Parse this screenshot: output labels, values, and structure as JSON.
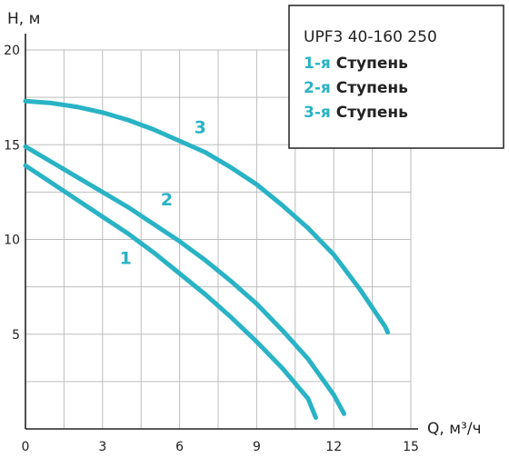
{
  "chart_data": {
    "type": "line",
    "xlabel": "Q, м³/ч",
    "ylabel": "H, м",
    "xlim": [
      0,
      15
    ],
    "ylim": [
      0,
      20
    ],
    "x_ticks": [
      0,
      3,
      6,
      9,
      12,
      15
    ],
    "y_ticks": [
      5,
      10,
      15,
      20
    ],
    "x_grid_step": 1.5,
    "y_grid_step": 2.5,
    "grid": true,
    "line_color": "#29b3c5",
    "legend": {
      "placement": "top-right",
      "title": "UPF3 40-160 250",
      "entries": [
        {
          "prefix": "1-я",
          "text": "Ступень"
        },
        {
          "prefix": "2-я",
          "text": "Ступень"
        },
        {
          "prefix": "3-я",
          "text": "Ступень"
        }
      ]
    },
    "series": [
      {
        "label": "1",
        "label_at": [
          3.9,
          8.7
        ],
        "x": [
          0,
          1,
          2,
          3,
          4,
          5,
          6,
          7,
          8,
          9,
          10,
          11,
          11.3
        ],
        "y": [
          13.9,
          13.0,
          12.1,
          11.2,
          10.3,
          9.3,
          8.2,
          7.1,
          5.9,
          4.6,
          3.2,
          1.6,
          0.6
        ]
      },
      {
        "label": "2",
        "label_at": [
          5.5,
          11.8
        ],
        "x": [
          0,
          1,
          2,
          3,
          4,
          5,
          6,
          7,
          8,
          9,
          10,
          11,
          12,
          12.4
        ],
        "y": [
          14.9,
          14.1,
          13.3,
          12.5,
          11.7,
          10.8,
          9.9,
          8.9,
          7.8,
          6.6,
          5.2,
          3.7,
          1.8,
          0.8
        ]
      },
      {
        "label": "3",
        "label_at": [
          6.8,
          15.6
        ],
        "x": [
          0,
          1,
          2,
          3,
          4,
          5,
          6,
          7,
          8,
          9,
          10,
          11,
          12,
          13,
          14,
          14.1
        ],
        "y": [
          17.3,
          17.2,
          17.0,
          16.7,
          16.3,
          15.8,
          15.2,
          14.6,
          13.8,
          12.9,
          11.8,
          10.6,
          9.2,
          7.4,
          5.4,
          5.1
        ]
      }
    ]
  }
}
